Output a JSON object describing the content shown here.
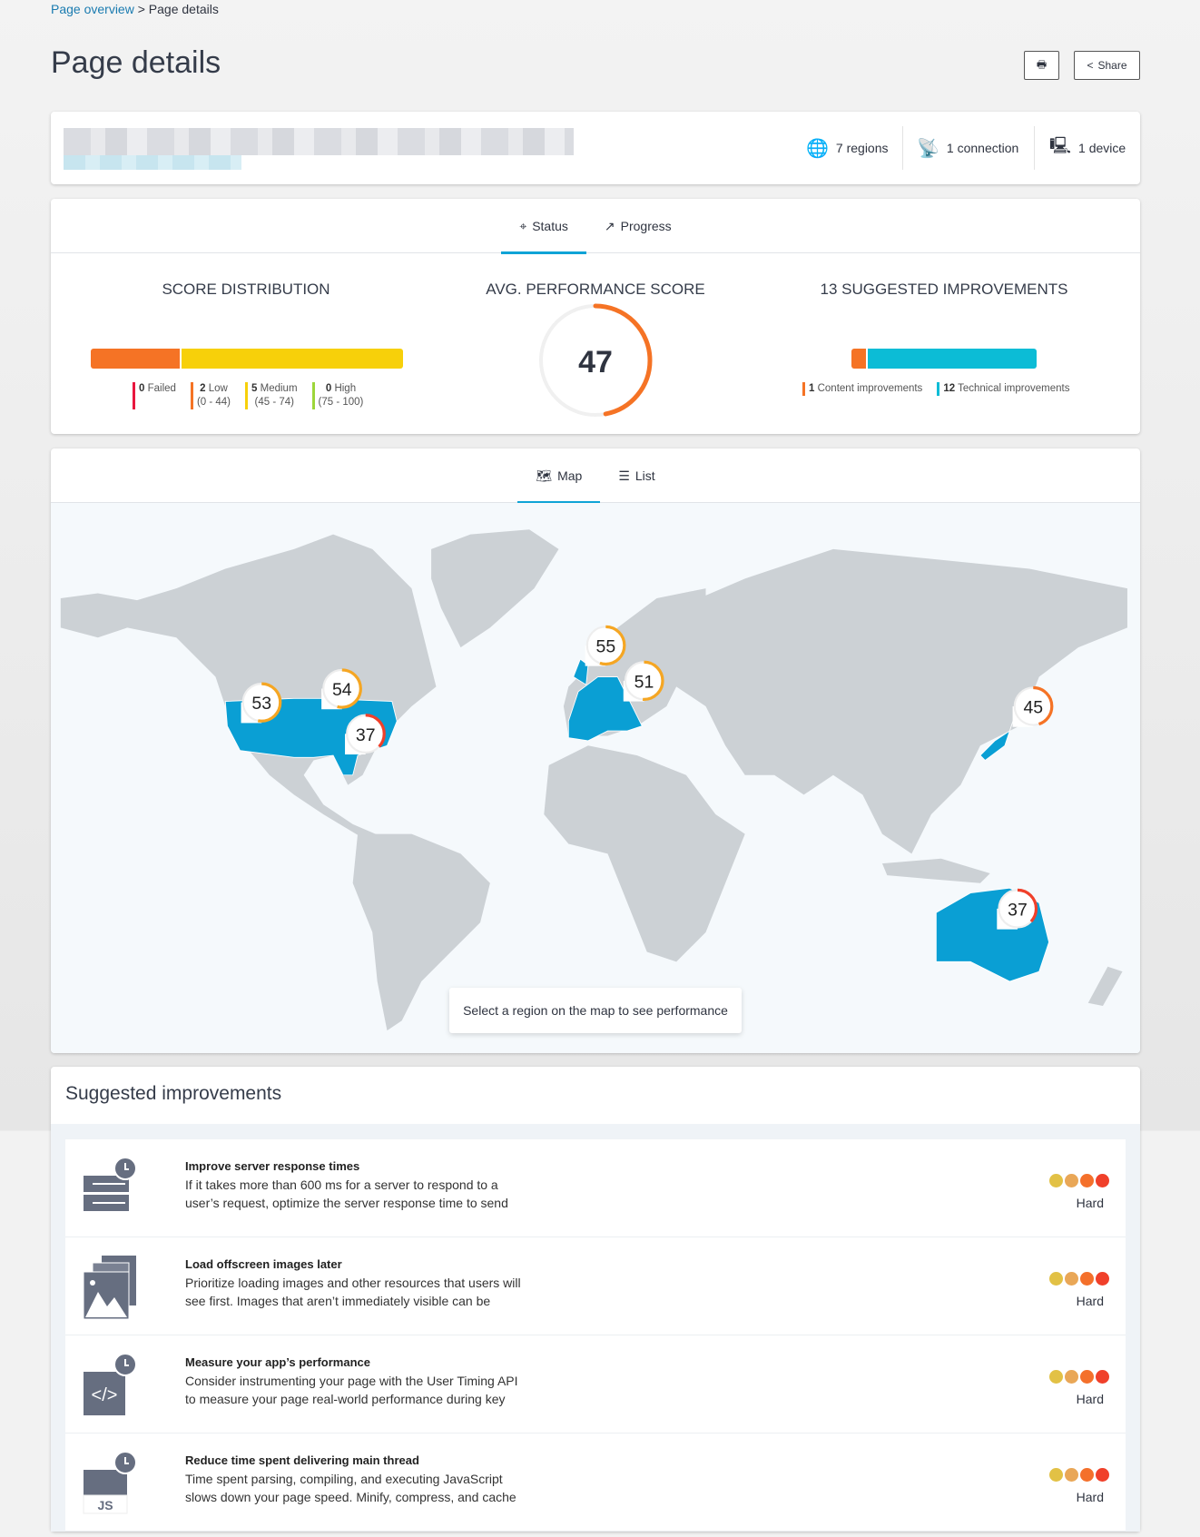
{
  "breadcrumb": {
    "parent": "Page overview",
    "separator": ">",
    "current": "Page details"
  },
  "title": "Page details",
  "toolbar": {
    "print_icon": "printer-icon",
    "share_label": "Share"
  },
  "info": {
    "regions": "7 regions",
    "connection": "1 connection",
    "device": "1 device"
  },
  "status_tabs": [
    {
      "label": "Status",
      "icon": "crosshair-icon",
      "active": true
    },
    {
      "label": "Progress",
      "icon": "trend-icon",
      "active": false
    }
  ],
  "score_distribution": {
    "title": "SCORE DISTRIBUTION",
    "segments": [
      {
        "count": "0",
        "label": "Failed",
        "range": "",
        "color": "#e8173e",
        "value": 0
      },
      {
        "count": "2",
        "label": "Low",
        "range": "(0 - 44)",
        "color": "#f57325",
        "value": 2
      },
      {
        "count": "5",
        "label": "Medium",
        "range": "(45 - 74)",
        "color": "#f7d00a",
        "value": 5
      },
      {
        "count": "0",
        "label": "High",
        "range": "(75 - 100)",
        "color": "#9dd63a",
        "value": 0
      }
    ]
  },
  "avg_score": {
    "title": "AVG. PERFORMANCE SCORE",
    "value": "47",
    "color": "#f57325"
  },
  "improvements_summary": {
    "title": "13 SUGGESTED IMPROVEMENTS",
    "segments": [
      {
        "count": "1",
        "label": "Content improvements",
        "color": "#f57325",
        "value": 1
      },
      {
        "count": "12",
        "label": "Technical improvements",
        "color": "#0cbcd6",
        "value": 12
      }
    ]
  },
  "map_tabs": [
    {
      "label": "Map",
      "icon": "map-icon",
      "active": true
    },
    {
      "label": "List",
      "icon": "list-icon",
      "active": false
    }
  ],
  "map": {
    "highlight_color": "#0a9fd4",
    "land_color": "#ccd1d5",
    "markers": [
      {
        "score": "53",
        "region": "US West"
      },
      {
        "score": "54",
        "region": "US Central"
      },
      {
        "score": "37",
        "region": "US East"
      },
      {
        "score": "55",
        "region": "UK"
      },
      {
        "score": "51",
        "region": "Europe"
      },
      {
        "score": "45",
        "region": "Japan"
      },
      {
        "score": "37",
        "region": "Australia"
      }
    ],
    "hint": "Select a region on the map to see performance"
  },
  "suggested": {
    "title": "Suggested improvements",
    "items": [
      {
        "title": "Improve server response times",
        "desc": "If it takes more than 600 ms for a server to respond to a user’s request, optimize the server response time to send",
        "difficulty": "Hard",
        "icon": "server-timer-icon"
      },
      {
        "title": "Load offscreen images later",
        "desc": "Prioritize loading images and other resources that users will see first. Images that aren’t immediately visible can be",
        "difficulty": "Hard",
        "icon": "images-icon"
      },
      {
        "title": "Measure your app’s performance",
        "desc": "Consider instrumenting your page with the User Timing API to measure your page real-world performance during key",
        "difficulty": "Hard",
        "icon": "code-timer-icon"
      },
      {
        "title": "Reduce time spent delivering main thread",
        "desc": "Time spent parsing, compiling, and executing JavaScript slows down your page speed. Minify, compress, and cache",
        "difficulty": "Hard",
        "icon": "js-timer-icon",
        "badge": "JS"
      }
    ]
  }
}
